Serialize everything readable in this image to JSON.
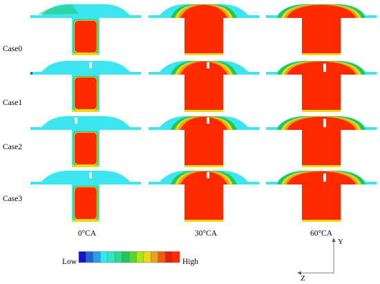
{
  "cases": [
    "Case0",
    "Case1",
    "Case2",
    "Case3"
  ],
  "angles": [
    "0°CA",
    "30°CA",
    "60°CA"
  ],
  "legend": {
    "low": "Low",
    "high": "High",
    "colors": [
      "#1414c8",
      "#1e64dc",
      "#28a0e6",
      "#3ce6f0",
      "#32e6c8",
      "#28dc8c",
      "#1ec85a",
      "#5ad232",
      "#aae61e",
      "#e6dc14",
      "#f0a014",
      "#f05a14",
      "#e61e14",
      "#ff2a00"
    ]
  },
  "axes": {
    "y": "Y",
    "z": "Z"
  },
  "colors": {
    "background_fluid": "#3ce6f0",
    "injected_fuel_core": "#ff2a00",
    "transition_orange": "#f0a014",
    "transition_yellow": "#e6dc14",
    "transition_green": "#1ec85a"
  }
}
